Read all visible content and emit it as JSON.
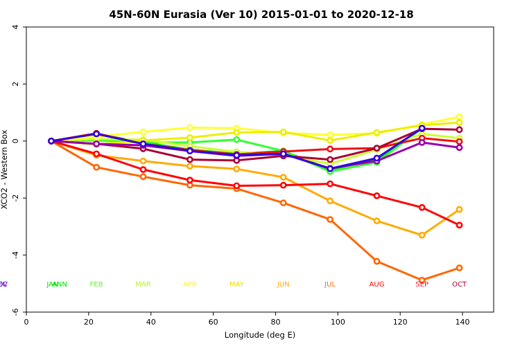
{
  "chart_data": {
    "type": "line",
    "title": "45N-60N Eurasia (Ver 10)   2015-01-01 to 2020-12-18",
    "xlabel": "Longitude (deg E)",
    "ylabel": "XCO2 - Western Box",
    "xlim": [
      0,
      150
    ],
    "ylim": [
      -6,
      4
    ],
    "xticks": [
      0,
      20,
      40,
      60,
      80,
      100,
      120,
      140
    ],
    "yticks": [
      -6,
      -4,
      -2,
      0,
      2,
      4
    ],
    "x": [
      8,
      22.5,
      37.5,
      52.5,
      67.5,
      82.5,
      97.5,
      112.5,
      127,
      139
    ],
    "series": [
      {
        "name": "JAN",
        "color": "#00dd00",
        "values": [
          0,
          0.25,
          -0.05,
          -0.3,
          -0.45,
          -0.35,
          -1.0,
          -0.65,
          0.45,
          null
        ]
      },
      {
        "name": "FEB",
        "color": "#33ff33",
        "values": [
          0,
          0.02,
          -0.05,
          -0.05,
          0.05,
          -0.35,
          -1.07,
          -0.75,
          0.45,
          null
        ]
      },
      {
        "name": "MAR",
        "color": "#ccff33",
        "values": [
          0,
          0.07,
          0.05,
          -0.18,
          -0.38,
          -0.5,
          -0.8,
          -0.3,
          0.25,
          0.1
        ]
      },
      {
        "name": "APR",
        "color": "#ffff33",
        "values": [
          0,
          0.15,
          0.32,
          0.47,
          0.45,
          0.28,
          0.22,
          0.27,
          0.58,
          0.85
        ]
      },
      {
        "name": "MAY",
        "color": "#eeee00",
        "values": [
          0,
          -0.12,
          0.02,
          0.12,
          0.3,
          0.32,
          0.02,
          0.3,
          0.55,
          0.65
        ]
      },
      {
        "name": "JUN",
        "color": "#ffaa00",
        "values": [
          0,
          -0.5,
          -0.7,
          -0.88,
          -0.98,
          -1.27,
          -2.1,
          -2.8,
          -3.3,
          -2.4
        ]
      },
      {
        "name": "JUL",
        "color": "#ff6600",
        "values": [
          0,
          -0.92,
          -1.25,
          -1.55,
          -1.67,
          -2.17,
          -2.75,
          -4.22,
          -4.88,
          -4.45
        ]
      },
      {
        "name": "AUG",
        "color": "#ff0000",
        "values": [
          0,
          -0.45,
          -1.0,
          -1.37,
          -1.57,
          -1.55,
          -1.5,
          -1.92,
          -2.33,
          -2.95
        ]
      },
      {
        "name": "SEP",
        "color": "#ee1111",
        "values": [
          0,
          0.27,
          -0.1,
          -0.32,
          -0.47,
          -0.37,
          -0.28,
          -0.25,
          0.1,
          -0.02
        ]
      },
      {
        "name": "OCT",
        "color": "#aa0033",
        "values": [
          0,
          -0.1,
          -0.27,
          -0.65,
          -0.68,
          -0.52,
          -0.65,
          -0.25,
          0.43,
          0.4
        ]
      },
      {
        "name": "NOV",
        "color": "#9900aa",
        "values": [
          0,
          -0.1,
          -0.15,
          -0.35,
          -0.52,
          -0.45,
          -0.96,
          -0.7,
          -0.05,
          -0.23
        ]
      },
      {
        "name": "DEC",
        "color": "#3300dd",
        "values": [
          0,
          0.25,
          -0.1,
          -0.35,
          -0.5,
          -0.45,
          -0.97,
          -0.6,
          0.45,
          null
        ]
      }
    ],
    "month_labels": [
      {
        "text": "JAN",
        "color": "#00dd00"
      },
      {
        "text": "FEB",
        "color": "#66ee33"
      },
      {
        "text": "MAR",
        "color": "#bbee33"
      },
      {
        "text": "APR",
        "color": "#ffee33"
      },
      {
        "text": "MAY",
        "color": "#eedd00"
      },
      {
        "text": "JUN",
        "color": "#ffaa00"
      },
      {
        "text": "JUL",
        "color": "#ff6600"
      },
      {
        "text": "AUG",
        "color": "#ff0000"
      },
      {
        "text": "SEP",
        "color": "#ee1133"
      },
      {
        "text": "OCT",
        "color": "#aa0033"
      },
      {
        "text": "NOV",
        "color": "#9900aa"
      },
      {
        "text": "DEC",
        "color": "#3300dd"
      }
    ],
    "ann_label": {
      "text": "ANN",
      "color": "#00dd00"
    }
  }
}
